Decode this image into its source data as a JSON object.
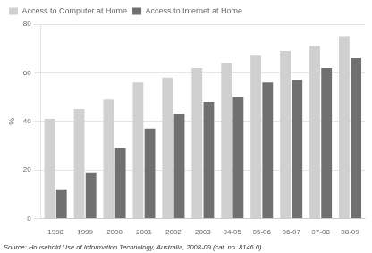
{
  "chart_data": {
    "type": "bar",
    "categories": [
      "1998",
      "1999",
      "2000",
      "2001",
      "2002",
      "2003",
      "04-05",
      "05-06",
      "06-07",
      "07-08",
      "08-09"
    ],
    "series": [
      {
        "name": "Access to Computer at Home",
        "color": "#d0d0d0",
        "values": [
          41,
          45,
          49,
          56,
          58,
          62,
          64,
          67,
          69,
          71,
          75
        ]
      },
      {
        "name": "Access to Internet at Home",
        "color": "#707070",
        "values": [
          12,
          19,
          29,
          37,
          43,
          48,
          50,
          56,
          57,
          62,
          66
        ]
      }
    ],
    "ylabel": "%",
    "ylim": [
      0,
      80
    ],
    "yticks": [
      0,
      20,
      40,
      60,
      80
    ],
    "grid": true,
    "legend": "upper left",
    "annotations": [
      "Source: Household Use of Information Technology, Australia, 2008-09 (cat. no. 8146.0)"
    ]
  }
}
